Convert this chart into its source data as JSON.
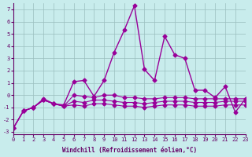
{
  "xlabel": "Windchill (Refroidissement éolien,°C)",
  "ylabel": "",
  "bg_color": "#c8ecec",
  "grid_color": "#9bbfbf",
  "line_color": "#990099",
  "xlim": [
    0,
    23
  ],
  "ylim": [
    -3.2,
    7.5
  ],
  "xticks": [
    0,
    1,
    2,
    3,
    4,
    5,
    6,
    7,
    8,
    9,
    10,
    11,
    12,
    13,
    14,
    15,
    16,
    17,
    18,
    19,
    20,
    21,
    22,
    23
  ],
  "yticks": [
    -3,
    -2,
    -1,
    0,
    1,
    2,
    3,
    4,
    5,
    6,
    7
  ],
  "series1_x": [
    0,
    1,
    2,
    3,
    4,
    5,
    6,
    7,
    8,
    9,
    10,
    11,
    12,
    13,
    14,
    15,
    16,
    17,
    18,
    19,
    20,
    21,
    22,
    23
  ],
  "series1_y": [
    -2.7,
    -1.3,
    -1.0,
    -0.3,
    -0.7,
    -0.8,
    1.1,
    1.2,
    -0.1,
    1.2,
    3.5,
    5.3,
    7.3,
    2.1,
    1.2,
    4.8,
    3.3,
    3.0,
    0.4,
    0.4,
    -0.2,
    0.7,
    -1.4,
    -0.3
  ],
  "series2_x": [
    0,
    1,
    2,
    3,
    4,
    5,
    6,
    7,
    8,
    9,
    10,
    11,
    12,
    13,
    14,
    15,
    16,
    17,
    18,
    19,
    20,
    21,
    22,
    23
  ],
  "series2_y": [
    -2.7,
    -1.3,
    -1.0,
    -0.4,
    -0.7,
    -0.9,
    0.0,
    -0.1,
    -0.2,
    0.0,
    0.0,
    -0.2,
    -0.2,
    -0.3,
    -0.3,
    -0.2,
    -0.2,
    -0.2,
    -0.3,
    -0.3,
    -0.3,
    -0.3,
    -0.3,
    -0.3
  ],
  "series3_x": [
    0,
    1,
    2,
    3,
    4,
    5,
    6,
    7,
    8,
    9,
    10,
    11,
    12,
    13,
    14,
    15,
    16,
    17,
    18,
    19,
    20,
    21,
    22,
    23
  ],
  "series3_y": [
    -2.7,
    -1.3,
    -1.0,
    -0.4,
    -0.7,
    -0.9,
    -0.5,
    -0.6,
    -0.4,
    -0.4,
    -0.5,
    -0.6,
    -0.6,
    -0.7,
    -0.6,
    -0.5,
    -0.5,
    -0.5,
    -0.6,
    -0.6,
    -0.6,
    -0.5,
    -0.5,
    -0.5
  ],
  "series4_x": [
    0,
    1,
    2,
    3,
    4,
    5,
    6,
    7,
    8,
    9,
    10,
    11,
    12,
    13,
    14,
    15,
    16,
    17,
    18,
    19,
    20,
    21,
    22,
    23
  ],
  "series4_y": [
    -2.7,
    -1.3,
    -1.0,
    -0.4,
    -0.7,
    -0.9,
    -0.8,
    -0.9,
    -0.7,
    -0.7,
    -0.8,
    -0.9,
    -0.9,
    -1.0,
    -0.9,
    -0.8,
    -0.8,
    -0.8,
    -0.9,
    -0.9,
    -0.9,
    -0.8,
    -0.8,
    -0.8
  ]
}
